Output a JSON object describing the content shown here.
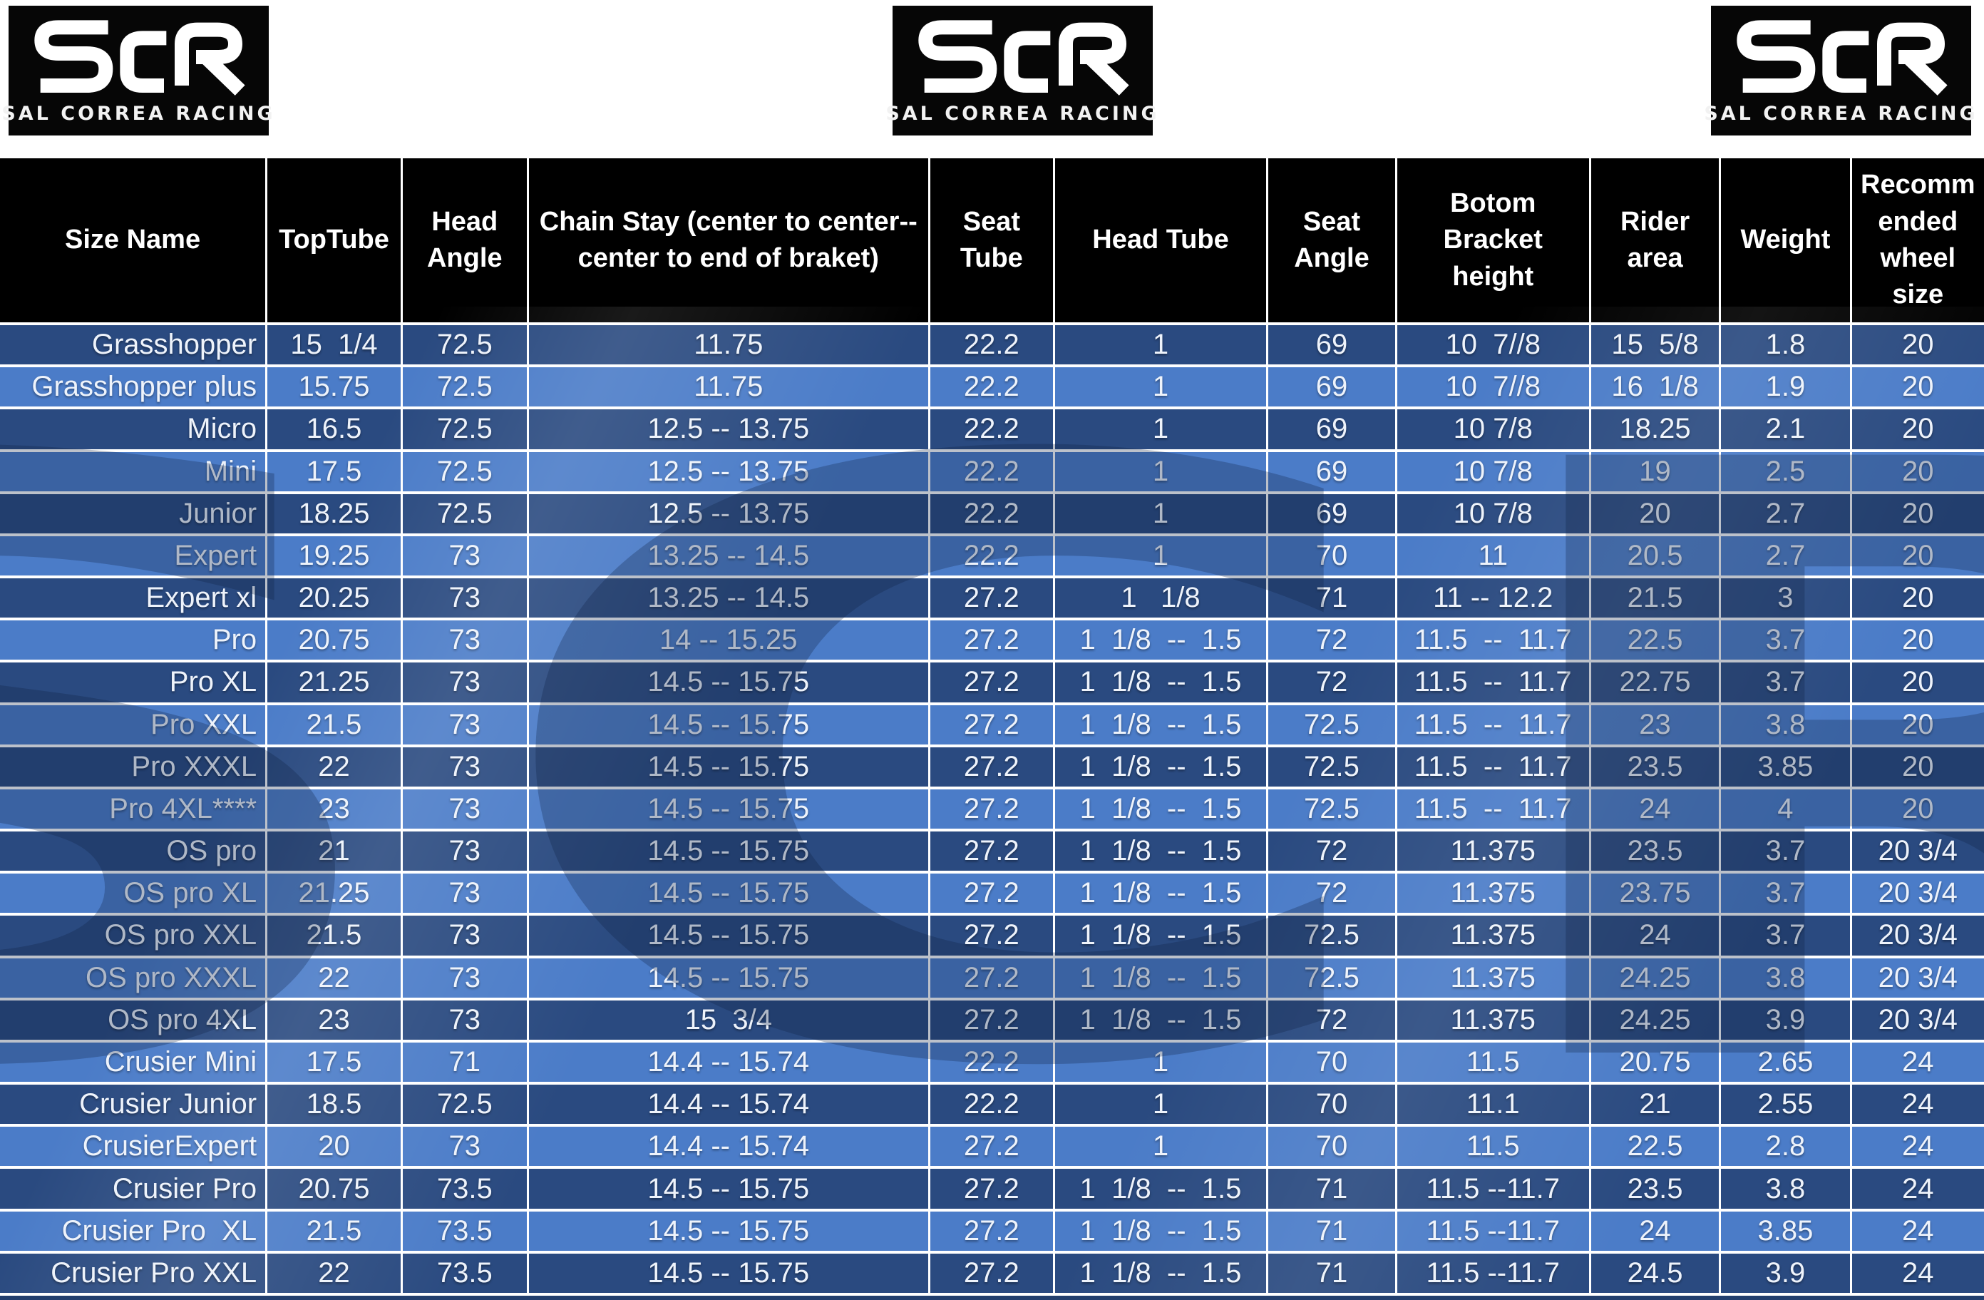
{
  "brand": {
    "monogram": "SCR",
    "name": "SAL CORREA RACING"
  },
  "colors": {
    "header_bg": "#000000",
    "row_dark": "#2a4a80",
    "row_light": "#4b7cc8",
    "cell_text": "#eef3fb",
    "border": "#ffffff",
    "logo_bg": "#060606"
  },
  "table": {
    "columns": [
      {
        "label": "Size Name"
      },
      {
        "label": "TopTube"
      },
      {
        "label": "Head Angle"
      },
      {
        "label": "Chain Stay (center to center--center to end of braket)"
      },
      {
        "label": "Seat Tube"
      },
      {
        "label": "Head Tube"
      },
      {
        "label": "Seat Angle"
      },
      {
        "label": "Botom Bracket height"
      },
      {
        "label": "Rider area"
      },
      {
        "label": "Weight"
      },
      {
        "label": "Recomm ended wheel size"
      }
    ],
    "rows": [
      [
        "Grasshopper",
        "15  1/4",
        "72.5",
        "11.75",
        "22.2",
        "1",
        "69",
        "10  7//8",
        "15  5/8",
        "1.8",
        "20"
      ],
      [
        "Grasshopper plus",
        "15.75",
        "72.5",
        "11.75",
        "22.2",
        "1",
        "69",
        "10  7//8",
        "16  1/8",
        "1.9",
        "20"
      ],
      [
        "Micro",
        "16.5",
        "72.5",
        "12.5 -- 13.75",
        "22.2",
        "1",
        "69",
        "10 7/8",
        "18.25",
        "2.1",
        "20"
      ],
      [
        "Mini",
        "17.5",
        "72.5",
        "12.5 -- 13.75",
        "22.2",
        "1",
        "69",
        "10 7/8",
        "19",
        "2.5",
        "20"
      ],
      [
        "Junior",
        "18.25",
        "72.5",
        "12.5 -- 13.75",
        "22.2",
        "1",
        "69",
        "10 7/8",
        "20",
        "2.7",
        "20"
      ],
      [
        "Expert",
        "19.25",
        "73",
        "13.25 -- 14.5",
        "22.2",
        "1",
        "70",
        "11",
        "20.5",
        "2.7",
        "20"
      ],
      [
        "Expert xl",
        "20.25",
        "73",
        "13.25 -- 14.5",
        "27.2",
        "1   1/8",
        "71",
        "11 -- 12.2",
        "21.5",
        "3",
        "20"
      ],
      [
        "Pro",
        "20.75",
        "73",
        "14 -- 15.25",
        "27.2",
        "1  1/8  --  1.5",
        "72",
        "11.5  --  11.7",
        "22.5",
        "3.7",
        "20"
      ],
      [
        "Pro XL",
        "21.25",
        "73",
        "14.5 -- 15.75",
        "27.2",
        "1  1/8  --  1.5",
        "72",
        "11.5  --  11.7",
        "22.75",
        "3.7",
        "20"
      ],
      [
        "Pro XXL",
        "21.5",
        "73",
        "14.5 -- 15.75",
        "27.2",
        "1  1/8  --  1.5",
        "72.5",
        "11.5  --  11.7",
        "23",
        "3.8",
        "20"
      ],
      [
        "Pro XXXL",
        "22",
        "73",
        "14.5 -- 15.75",
        "27.2",
        "1  1/8  --  1.5",
        "72.5",
        "11.5  --  11.7",
        "23.5",
        "3.85",
        "20"
      ],
      [
        "Pro 4XL****",
        "23",
        "73",
        "14.5 -- 15.75",
        "27.2",
        "1  1/8  --  1.5",
        "72.5",
        "11.5  --  11.7",
        "24",
        "4",
        "20"
      ],
      [
        "OS pro",
        "21",
        "73",
        "14.5 -- 15.75",
        "27.2",
        "1  1/8  --  1.5",
        "72",
        "11.375",
        "23.5",
        "3.7",
        "20 3/4"
      ],
      [
        "OS pro XL",
        "21.25",
        "73",
        "14.5 -- 15.75",
        "27.2",
        "1  1/8  --  1.5",
        "72",
        "11.375",
        "23.75",
        "3.7",
        "20 3/4"
      ],
      [
        "OS pro XXL",
        "21.5",
        "73",
        "14.5 -- 15.75",
        "27.2",
        "1  1/8  --  1.5",
        "72.5",
        "11.375",
        "24",
        "3.7",
        "20 3/4"
      ],
      [
        "OS pro XXXL",
        "22",
        "73",
        "14.5 -- 15.75",
        "27.2",
        "1  1/8  --  1.5",
        "72.5",
        "11.375",
        "24.25",
        "3.8",
        "20 3/4"
      ],
      [
        "OS pro 4XL",
        "23",
        "73",
        "15  3/4",
        "27.2",
        "1  1/8  --  1.5",
        "72",
        "11.375",
        "24.25",
        "3.9",
        "20 3/4"
      ],
      [
        "Crusier Mini",
        "17.5",
        "71",
        "14.4 -- 15.74",
        "22.2",
        "1",
        "70",
        "11.5",
        "20.75",
        "2.65",
        "24"
      ],
      [
        "Crusier Junior",
        "18.5",
        "72.5",
        "14.4 -- 15.74",
        "22.2",
        "1",
        "70",
        "11.1",
        "21",
        "2.55",
        "24"
      ],
      [
        "CrusierExpert",
        "20",
        "73",
        "14.4 -- 15.74",
        "27.2",
        "1",
        "70",
        "11.5",
        "22.5",
        "2.8",
        "24"
      ],
      [
        "Crusier Pro",
        "20.75",
        "73.5",
        "14.5 -- 15.75",
        "27.2",
        "1  1/8  --  1.5",
        "71",
        "11.5 --11.7",
        "23.5",
        "3.8",
        "24"
      ],
      [
        "Crusier Pro  XL",
        "21.5",
        "73.5",
        "14.5 -- 15.75",
        "27.2",
        "1  1/8  --  1.5",
        "71",
        "11.5 --11.7",
        "24",
        "3.85",
        "24"
      ],
      [
        "Crusier Pro XXL",
        "22",
        "73.5",
        "14.5 -- 15.75",
        "27.2",
        "1  1/8  --  1.5",
        "71",
        "11.5 --11.7",
        "24.5",
        "3.9",
        "24"
      ]
    ]
  }
}
